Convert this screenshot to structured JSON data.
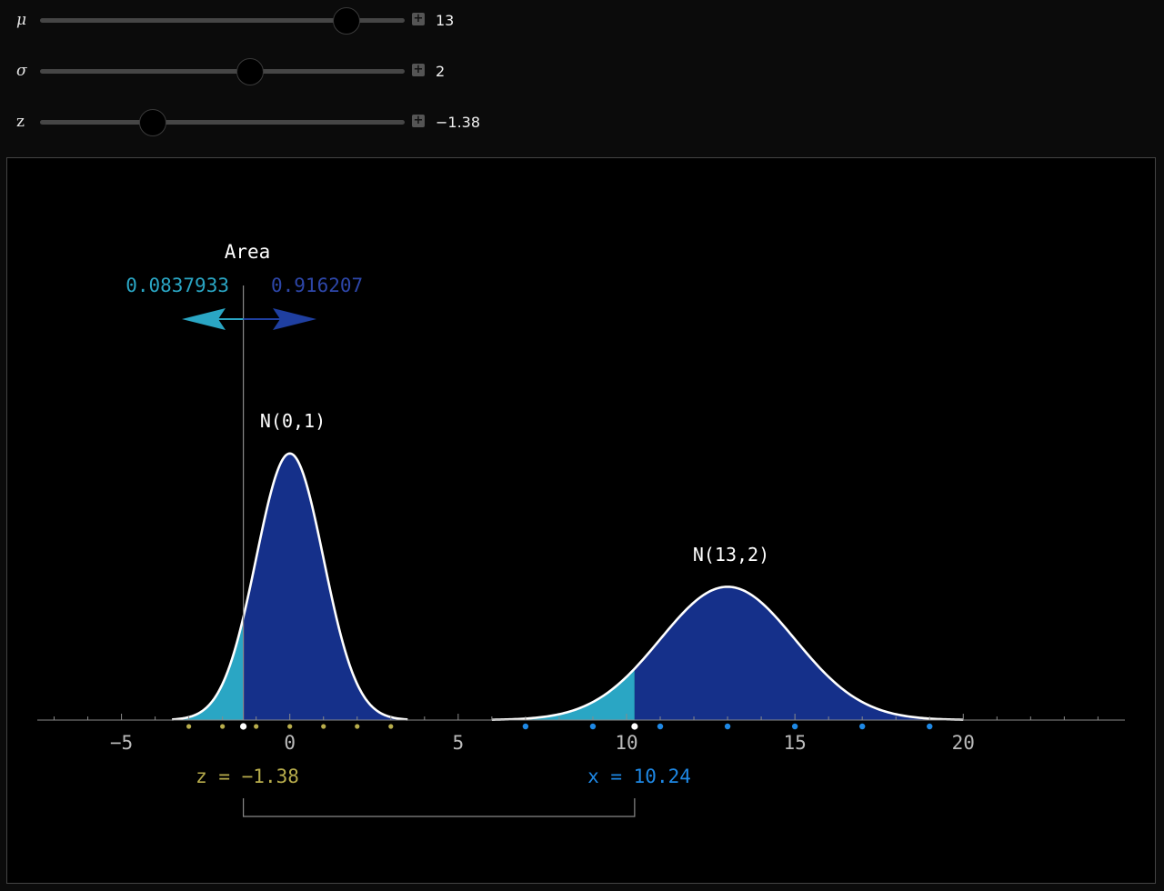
{
  "controls": [
    {
      "symbol": "μ",
      "value": "13",
      "fraction": 0.84
    },
    {
      "symbol": "σ",
      "value": "2",
      "fraction": 0.575
    },
    {
      "symbol": "z",
      "value": "−1.38",
      "fraction": 0.31
    }
  ],
  "chart_data": {
    "type": "area",
    "x_ticks": [
      "−5",
      "0",
      "5",
      "10",
      "15",
      "20"
    ],
    "x_tick_values": [
      -5,
      0,
      5,
      10,
      15,
      20
    ],
    "xlim": [
      -7.5,
      24.8
    ],
    "area_title": "Area",
    "area_left": "0.0837933",
    "area_right": "0.916207",
    "series": [
      {
        "name": "N(0,1)",
        "mu": 0,
        "sigma": 1,
        "domain": [
          -3.5,
          3.5
        ],
        "cut": -1.38
      },
      {
        "name": "N(13,2)",
        "mu": 13,
        "sigma": 2,
        "domain": [
          6,
          20
        ],
        "cut": 10.24
      }
    ],
    "z_label": "z = −1.38",
    "x_label": "x = 10.24",
    "z": -1.38,
    "x": 10.24,
    "z_dots": [
      -3,
      -2,
      -1,
      0,
      1,
      2,
      3
    ],
    "x_dots": [
      7,
      9,
      11,
      13,
      15,
      17,
      19
    ],
    "colors": {
      "left_area": "#2aa6c4",
      "right_area": "#15308a",
      "curve": "#ffffff",
      "z_color": "#b8ad4c",
      "x_color": "#1e88e5",
      "axis": "#8a8a8a",
      "tick_text": "#bbbbbb"
    }
  }
}
